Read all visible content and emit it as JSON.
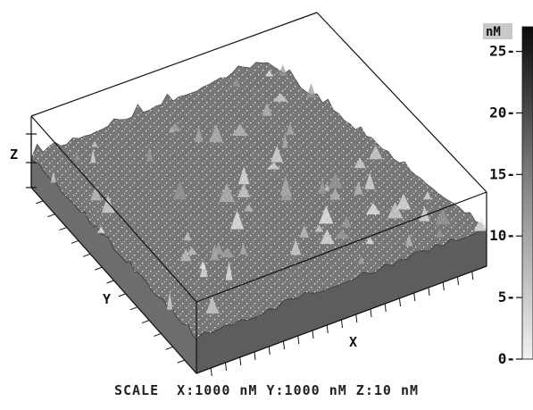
{
  "chart_data": {
    "type": "surface",
    "axis_labels": {
      "x": "X",
      "y": "Y",
      "z": "Z"
    },
    "colorbar": {
      "unit": "nM",
      "ticks": [
        "25",
        "20",
        "15",
        "10",
        "5",
        "0"
      ],
      "tick_values": [
        25,
        20,
        15,
        10,
        5,
        0
      ],
      "range": [
        0,
        27
      ]
    },
    "scale_text": "SCALE  X:1000 nM Y:1000 nM Z:10 nM"
  }
}
